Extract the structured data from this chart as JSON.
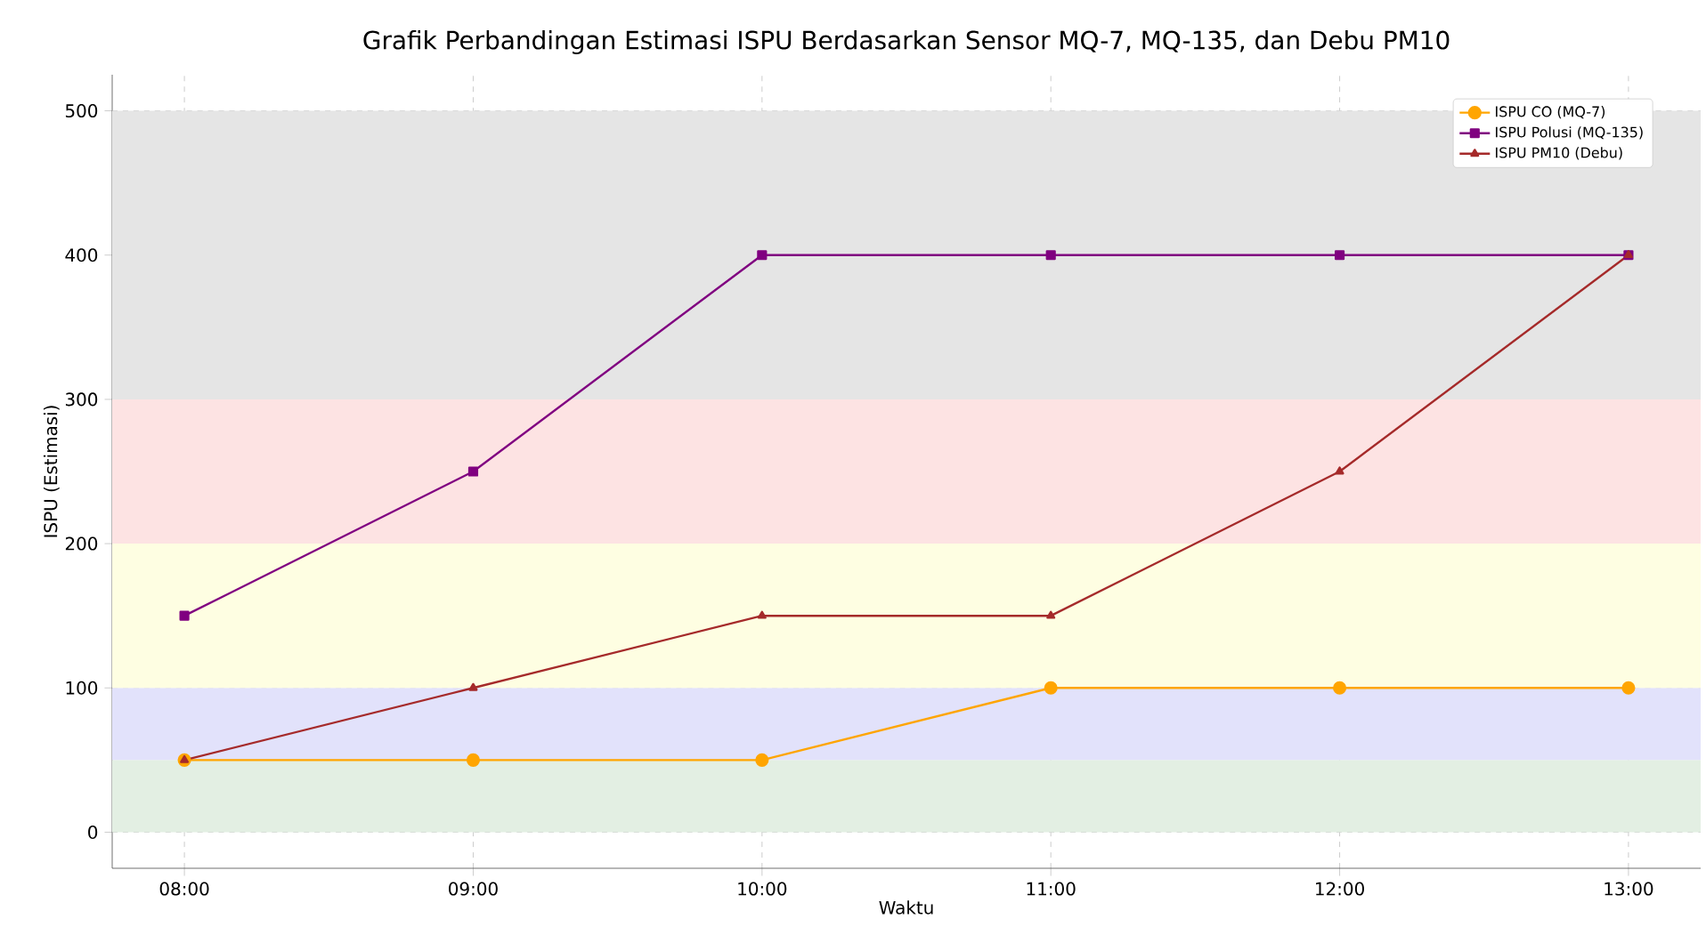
{
  "chart_data": {
    "type": "line",
    "title": "Grafik Perbandingan Estimasi ISPU Berdasarkan Sensor MQ-7, MQ-135, dan Debu PM10",
    "xlabel": "Waktu",
    "ylabel": "ISPU (Estimasi)",
    "x": [
      8,
      9,
      10,
      11,
      12,
      13
    ],
    "series": [
      {
        "name": "ISPU CO (MQ-7)",
        "color": "#ffa500",
        "marker": "circle",
        "values": [
          50,
          50,
          50,
          100,
          100,
          100
        ]
      },
      {
        "name": "ISPU Polusi (MQ-135)",
        "color": "#800080",
        "marker": "square",
        "values": [
          150,
          250,
          400,
          400,
          400,
          400
        ]
      },
      {
        "name": "ISPU PM10 (Debu)",
        "color": "#a52a2a",
        "marker": "triangle",
        "values": [
          50,
          100,
          150,
          150,
          250,
          400
        ]
      }
    ],
    "xlim": [
      7.75,
      13.25
    ],
    "ylim": [
      -25,
      525
    ],
    "xticks": [
      {
        "value": 8,
        "label": "08:00"
      },
      {
        "value": 9,
        "label": "09:00"
      },
      {
        "value": 10,
        "label": "10:00"
      },
      {
        "value": 11,
        "label": "11:00"
      },
      {
        "value": 12,
        "label": "12:00"
      },
      {
        "value": 13,
        "label": "13:00"
      }
    ],
    "yticks": [
      0,
      100,
      200,
      300,
      400,
      500
    ],
    "bands": [
      {
        "axis": "y",
        "from": 0,
        "to": 50,
        "color": "#e3efe3"
      },
      {
        "axis": "y",
        "from": 50,
        "to": 100,
        "color": "#e2e2fb"
      },
      {
        "axis": "y",
        "from": 100,
        "to": 200,
        "color": "#fefee2"
      },
      {
        "axis": "y",
        "from": 200,
        "to": 300,
        "color": "#fde3e3"
      },
      {
        "axis": "y",
        "from": 300,
        "to": 500,
        "color": "#e5e5e5"
      }
    ],
    "grid": true,
    "legend": "top right",
    "line_style": "solid"
  }
}
